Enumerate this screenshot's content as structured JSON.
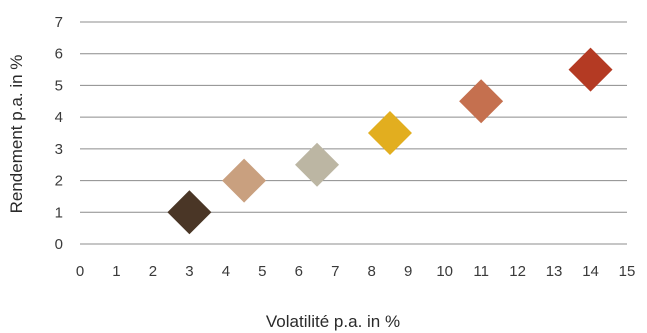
{
  "chart_data": {
    "type": "scatter",
    "xlabel": "Volatilité p.a. in %",
    "ylabel": "Rendement p.a. in %",
    "xlim": [
      0,
      15
    ],
    "ylim": [
      0,
      7
    ],
    "x_ticks": [
      "0",
      "1",
      "2",
      "3",
      "4",
      "5",
      "6",
      "7",
      "8",
      "9",
      "10",
      "11",
      "12",
      "13",
      "14",
      "15"
    ],
    "y_ticks": [
      "0",
      "1",
      "2",
      "3",
      "4",
      "5",
      "6",
      "7"
    ],
    "grid": "horizontal",
    "marker": "diamond",
    "points": [
      {
        "x": 3.0,
        "y": 1.0,
        "color": "#4a3626"
      },
      {
        "x": 4.5,
        "y": 2.0,
        "color": "#c9a07f"
      },
      {
        "x": 6.5,
        "y": 2.5,
        "color": "#bcb6a3"
      },
      {
        "x": 8.5,
        "y": 3.5,
        "color": "#e2ae1f"
      },
      {
        "x": 11.0,
        "y": 4.5,
        "color": "#c5704f"
      },
      {
        "x": 14.0,
        "y": 5.5,
        "color": "#b43a23"
      }
    ]
  }
}
